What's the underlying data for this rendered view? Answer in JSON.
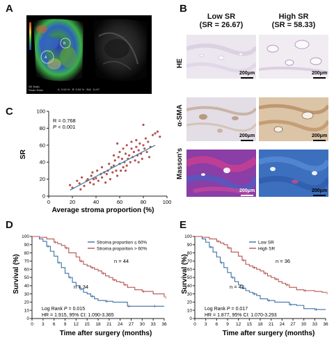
{
  "panels": {
    "A": {
      "letter": "A",
      "us_left_caption": "SE Ratio\nStrain Ratio",
      "us_left_values": [
        "A",
        "0.54 %",
        "B",
        "0.54 %",
        "B/A",
        "11.87"
      ]
    },
    "B": {
      "letter": "B",
      "col_low_title": "Low SR",
      "col_low_sub": "(SR = 26.67)",
      "col_high_title": "High SR",
      "col_high_sub": "(SR = 58.33)",
      "rows": [
        "HE",
        "α-SMA",
        "Masson's"
      ],
      "scale_label": "200μm"
    },
    "C": {
      "letter": "C",
      "annot_r": "R = 0.768",
      "annot_p_prefix": "P",
      "annot_p_suffix": " < 0.001"
    },
    "D": {
      "letter": "D",
      "annot_logrank_prefix": "Log Rank ",
      "annot_logrank_p": "P",
      "annot_logrank_suffix": " = 0.015",
      "annot_hr": "HR = 1.915, 95% CI: 1.090-3.365",
      "n_upper": "n = 44",
      "n_lower": "n = 34"
    },
    "E": {
      "letter": "E",
      "annot_logrank_prefix": "Log Rank ",
      "annot_logrank_p": "P",
      "annot_logrank_suffix": " = 0.017",
      "annot_hr": "HR = 1.877, 95% CI: 1.070-3.293",
      "n_upper": "n = 36",
      "n_lower": "n = 42"
    }
  },
  "chart_data": [
    {
      "id": "C",
      "type": "scatter",
      "xlabel": "Average stroma proportion (%)",
      "ylabel": "SR",
      "xlim": [
        0,
        100
      ],
      "ylim": [
        0,
        100
      ],
      "xticks": [
        0,
        20,
        40,
        60,
        80,
        100
      ],
      "yticks": [
        0,
        20,
        40,
        60,
        80,
        100
      ],
      "point_color": "#b5524f",
      "line_color": "#3b7ea1",
      "fit": {
        "x": [
          18,
          90
        ],
        "y": [
          7,
          60
        ]
      },
      "points": [
        [
          18,
          13
        ],
        [
          20,
          10
        ],
        [
          24,
          18
        ],
        [
          26,
          15
        ],
        [
          27,
          8
        ],
        [
          28,
          22
        ],
        [
          30,
          12
        ],
        [
          32,
          18
        ],
        [
          33,
          20
        ],
        [
          35,
          16
        ],
        [
          36,
          24
        ],
        [
          37,
          28
        ],
        [
          38,
          14
        ],
        [
          38,
          20
        ],
        [
          40,
          21
        ],
        [
          41,
          30
        ],
        [
          42,
          18
        ],
        [
          44,
          26
        ],
        [
          45,
          22
        ],
        [
          45,
          34
        ],
        [
          47,
          28
        ],
        [
          48,
          16
        ],
        [
          49,
          26
        ],
        [
          50,
          30
        ],
        [
          51,
          38
        ],
        [
          52,
          20
        ],
        [
          53,
          34
        ],
        [
          54,
          28
        ],
        [
          55,
          36
        ],
        [
          55,
          48
        ],
        [
          56,
          42
        ],
        [
          57,
          30
        ],
        [
          58,
          24
        ],
        [
          59,
          46
        ],
        [
          60,
          38
        ],
        [
          60,
          52
        ],
        [
          61,
          30
        ],
        [
          62,
          44
        ],
        [
          63,
          34
        ],
        [
          63,
          56
        ],
        [
          64,
          40
        ],
        [
          65,
          50
        ],
        [
          66,
          36
        ],
        [
          66,
          60
        ],
        [
          67,
          44
        ],
        [
          68,
          48
        ],
        [
          69,
          40
        ],
        [
          70,
          56
        ],
        [
          70,
          64
        ],
        [
          71,
          46
        ],
        [
          72,
          52
        ],
        [
          73,
          42
        ],
        [
          74,
          58
        ],
        [
          74,
          66
        ],
        [
          75,
          48
        ],
        [
          76,
          54
        ],
        [
          77,
          62
        ],
        [
          78,
          50
        ],
        [
          79,
          44
        ],
        [
          80,
          60
        ],
        [
          81,
          56
        ],
        [
          82,
          68
        ],
        [
          83,
          52
        ],
        [
          85,
          46
        ],
        [
          86,
          58
        ],
        [
          88,
          72
        ],
        [
          90,
          74
        ],
        [
          92,
          76
        ],
        [
          94,
          70
        ],
        [
          80,
          84
        ],
        [
          84,
          64
        ],
        [
          76,
          40
        ],
        [
          65,
          30
        ],
        [
          58,
          62
        ]
      ]
    },
    {
      "id": "D",
      "type": "line",
      "xlabel": "Time after surgery (months)",
      "ylabel": "Survival (%)",
      "xlim": [
        0,
        36
      ],
      "ylim": [
        0,
        100
      ],
      "xticks": [
        0,
        3,
        6,
        9,
        12,
        15,
        18,
        21,
        24,
        27,
        30,
        33,
        36
      ],
      "yticks": [
        0,
        10,
        20,
        30,
        40,
        50,
        60,
        70,
        80,
        90,
        100
      ],
      "series": [
        {
          "name": "Stroma proportion ≤ 60%",
          "color": "#3b6fa6",
          "x": [
            0,
            2,
            3,
            4,
            5,
            6,
            7,
            8,
            9,
            10,
            11,
            12,
            13,
            14,
            15,
            16,
            17,
            18,
            20,
            22,
            24,
            26,
            28,
            30,
            33,
            36
          ],
          "y": [
            100,
            97,
            94,
            88,
            82,
            76,
            68,
            62,
            55,
            50,
            44,
            40,
            36,
            32,
            30,
            27,
            24,
            22,
            21,
            20,
            20,
            15,
            15,
            15,
            15,
            15
          ]
        },
        {
          "name": "Stroma proportion > 60%",
          "color": "#b5524f",
          "x": [
            0,
            2,
            4,
            6,
            7,
            8,
            9,
            10,
            12,
            13,
            14,
            15,
            16,
            17,
            18,
            19,
            20,
            21,
            22,
            23,
            24,
            25,
            26,
            28,
            30,
            33,
            35,
            36
          ],
          "y": [
            100,
            99,
            97,
            93,
            91,
            89,
            86,
            80,
            75,
            70,
            66,
            64,
            62,
            60,
            58,
            55,
            52,
            50,
            47,
            45,
            44,
            41,
            38,
            35,
            33,
            30,
            30,
            26
          ]
        }
      ],
      "legend": "top-right"
    },
    {
      "id": "E",
      "type": "line",
      "xlabel": "Time after surgery (months)",
      "ylabel": "Survival (%)",
      "xlim": [
        0,
        36
      ],
      "ylim": [
        0,
        100
      ],
      "xticks": [
        0,
        3,
        6,
        9,
        12,
        15,
        18,
        21,
        24,
        27,
        30,
        33,
        36
      ],
      "yticks": [
        0,
        10,
        20,
        30,
        40,
        50,
        60,
        70,
        80,
        90,
        100
      ],
      "series": [
        {
          "name": "Low SR",
          "color": "#3b6fa6",
          "x": [
            0,
            2,
            3,
            4,
            5,
            6,
            7,
            8,
            9,
            10,
            11,
            12,
            13,
            14,
            15,
            16,
            17,
            18,
            20,
            22,
            24,
            26,
            28,
            30,
            33,
            36
          ],
          "y": [
            100,
            97,
            93,
            87,
            81,
            75,
            68,
            62,
            56,
            50,
            45,
            41,
            37,
            34,
            32,
            30,
            28,
            24,
            22,
            20,
            20,
            17,
            16,
            12,
            11,
            11
          ]
        },
        {
          "name": "High SR",
          "color": "#b5524f",
          "x": [
            0,
            2,
            4,
            6,
            7,
            8,
            9,
            10,
            12,
            13,
            14,
            15,
            16,
            17,
            18,
            19,
            20,
            21,
            22,
            23,
            24,
            25,
            26,
            28,
            30,
            33,
            35,
            36
          ],
          "y": [
            100,
            99,
            97,
            94,
            92,
            90,
            86,
            81,
            76,
            71,
            66,
            64,
            62,
            60,
            58,
            55,
            52,
            50,
            48,
            45,
            43,
            41,
            38,
            35,
            34,
            33,
            32,
            31
          ]
        }
      ],
      "legend": "top-right"
    }
  ]
}
